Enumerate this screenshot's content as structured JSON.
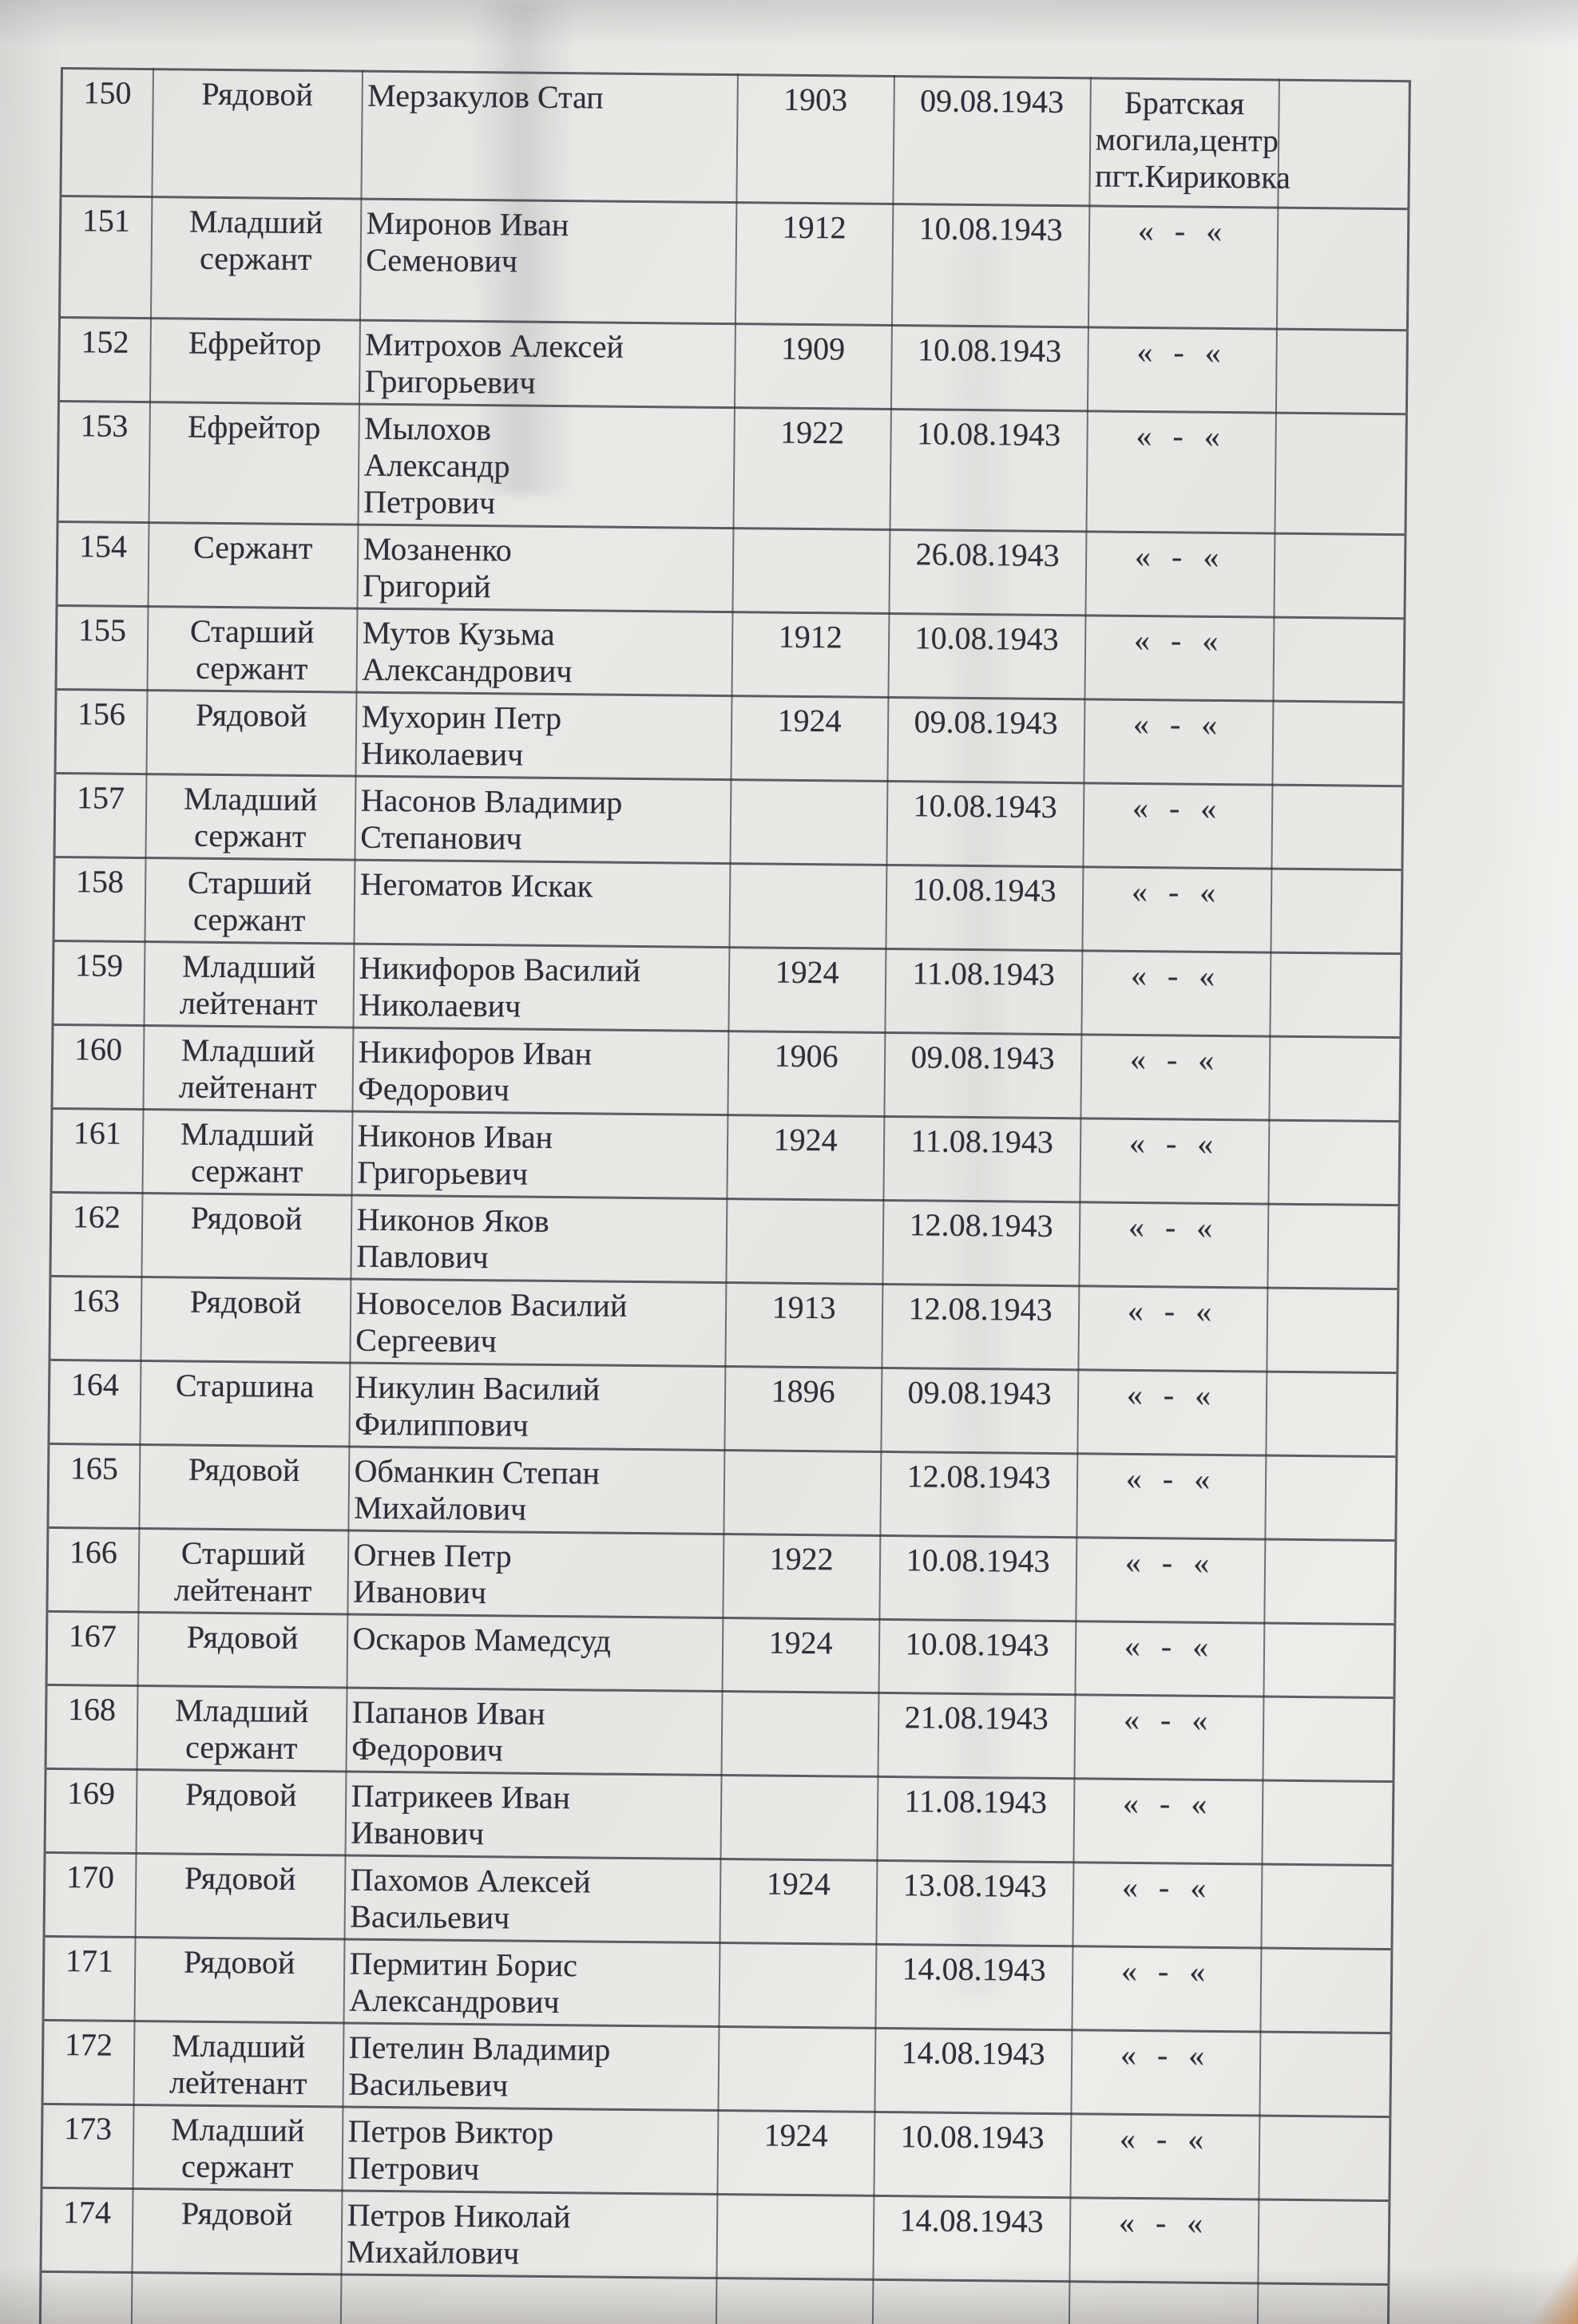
{
  "page": {
    "kind": "scanned typewritten casualty list page",
    "language": "Russian",
    "colors": {
      "paper": "#e7e7e5",
      "ink": "#2e2e3a",
      "grid_line": "#3c3c48",
      "desk_corner": "#c6884e"
    }
  },
  "table": {
    "ditto_mark": "« - «",
    "rows": [
      {
        "num": "150",
        "rank": "Рядовой",
        "name": "Мерзакулов Стап",
        "birth_year": "1903",
        "death_date": "09.08.1943",
        "burial": "Братская\nмогила,центр\nпгт.Кириковка",
        "notes": ""
      },
      {
        "num": "151",
        "rank": "Младший\nсержант",
        "name": "Миронов Иван\nСеменович",
        "birth_year": "1912",
        "death_date": "10.08.1943",
        "burial": "« - «",
        "notes": ""
      },
      {
        "num": "152",
        "rank": "Ефрейтор",
        "name": "Митрохов Алексей\nГригорьевич",
        "birth_year": "1909",
        "death_date": "10.08.1943",
        "burial": "« - «",
        "notes": ""
      },
      {
        "num": "153",
        "rank": "Ефрейтор",
        "name": "Мылохов\nАлександр\nПетрович",
        "birth_year": "1922",
        "death_date": "10.08.1943",
        "burial": "« - «",
        "notes": ""
      },
      {
        "num": "154",
        "rank": "Сержант",
        "name": "Мозаненко\nГригорий",
        "birth_year": "",
        "death_date": "26.08.1943",
        "burial": "« - «",
        "notes": ""
      },
      {
        "num": "155",
        "rank": "Старший\nсержант",
        "name": "Мутов Кузьма\nАлександрович",
        "birth_year": "1912",
        "death_date": "10.08.1943",
        "burial": "« - «",
        "notes": ""
      },
      {
        "num": "156",
        "rank": "Рядовой",
        "name": "Мухорин Петр\nНиколаевич",
        "birth_year": "1924",
        "death_date": "09.08.1943",
        "burial": "« - «",
        "notes": ""
      },
      {
        "num": "157",
        "rank": "Младший\nсержант",
        "name": "Насонов Владимир\nСтепанович",
        "birth_year": "",
        "death_date": "10.08.1943",
        "burial": "« - «",
        "notes": ""
      },
      {
        "num": "158",
        "rank": "Старший\nсержант",
        "name": "Негоматов Искак",
        "birth_year": "",
        "death_date": "10.08.1943",
        "burial": "« - «",
        "notes": ""
      },
      {
        "num": "159",
        "rank": "Младший\nлейтенант",
        "name": "Никифоров Василий\nНиколаевич",
        "birth_year": "1924",
        "death_date": "11.08.1943",
        "burial": "« - «",
        "notes": ""
      },
      {
        "num": "160",
        "rank": "Младший\nлейтенант",
        "name": "Никифоров Иван\nФедорович",
        "birth_year": "1906",
        "death_date": "09.08.1943",
        "burial": "« - «",
        "notes": ""
      },
      {
        "num": "161",
        "rank": "Младший\nсержант",
        "name": "Никонов Иван\nГригорьевич",
        "birth_year": "1924",
        "death_date": "11.08.1943",
        "burial": "« - «",
        "notes": ""
      },
      {
        "num": "162",
        "rank": "Рядовой",
        "name": "Никонов Яков\nПавлович",
        "birth_year": "",
        "death_date": "12.08.1943",
        "burial": "« - «",
        "notes": ""
      },
      {
        "num": "163",
        "rank": "Рядовой",
        "name": "Новоселов Василий\nСергеевич",
        "birth_year": "1913",
        "death_date": "12.08.1943",
        "burial": "« - «",
        "notes": ""
      },
      {
        "num": "164",
        "rank": "Старшина",
        "name": "Никулин Василий\nФилиппович",
        "birth_year": "1896",
        "death_date": "09.08.1943",
        "burial": "« - «",
        "notes": ""
      },
      {
        "num": "165",
        "rank": "Рядовой",
        "name": "Обманкин Степан\nМихайлович",
        "birth_year": "",
        "death_date": "12.08.1943",
        "burial": "« - «",
        "notes": ""
      },
      {
        "num": "166",
        "rank": "Старший\nлейтенант",
        "name": "Огнев Петр\nИванович",
        "birth_year": "1922",
        "death_date": "10.08.1943",
        "burial": "« - «",
        "notes": ""
      },
      {
        "num": "167",
        "rank": "Рядовой",
        "name": "Оскаров Мамедсуд",
        "birth_year": "1924",
        "death_date": "10.08.1943",
        "burial": "« - «",
        "notes": ""
      },
      {
        "num": "168",
        "rank": "Младший\nсержант",
        "name": "Папанов Иван\nФедорович",
        "birth_year": "",
        "death_date": "21.08.1943",
        "burial": "« - «",
        "notes": ""
      },
      {
        "num": "169",
        "rank": "Рядовой",
        "name": "Патрикеев Иван\nИванович",
        "birth_year": "",
        "death_date": "11.08.1943",
        "burial": "« - «",
        "notes": ""
      },
      {
        "num": "170",
        "rank": "Рядовой",
        "name": "Пахомов Алексей\nВасильевич",
        "birth_year": "1924",
        "death_date": "13.08.1943",
        "burial": "« - «",
        "notes": ""
      },
      {
        "num": "171",
        "rank": "Рядовой",
        "name": "Пермитин Борис\nАлександрович",
        "birth_year": "",
        "death_date": "14.08.1943",
        "burial": "« - «",
        "notes": ""
      },
      {
        "num": "172",
        "rank": "Младший\nлейтенант",
        "name": "Петелин Владимир\nВасильевич",
        "birth_year": "",
        "death_date": "14.08.1943",
        "burial": "« - «",
        "notes": ""
      },
      {
        "num": "173",
        "rank": "Младший\nсержант",
        "name": "Петров Виктор\nПетрович",
        "birth_year": "1924",
        "death_date": "10.08.1943",
        "burial": "« - «",
        "notes": ""
      },
      {
        "num": "174",
        "rank": "Рядовой",
        "name": "Петров Николай\nМихайлович",
        "birth_year": "",
        "death_date": "14.08.1943",
        "burial": "« - «",
        "notes": ""
      },
      {
        "num": "",
        "rank": "",
        "name": "",
        "birth_year": "",
        "death_date": "",
        "burial": "",
        "notes": ""
      }
    ]
  }
}
